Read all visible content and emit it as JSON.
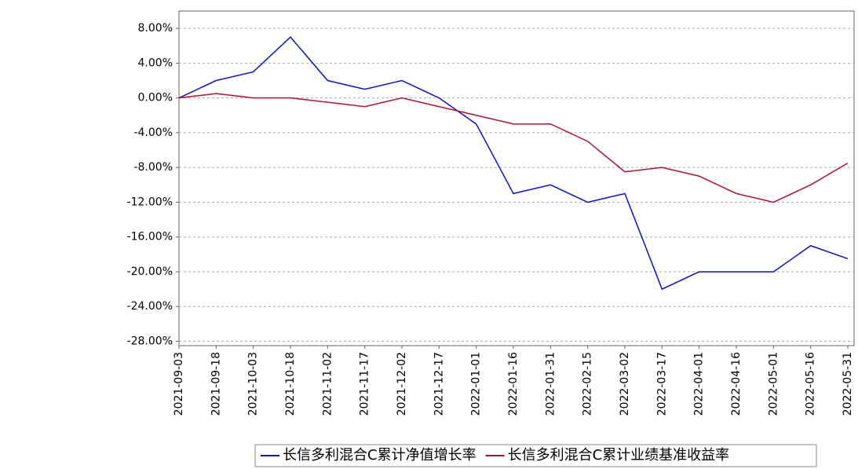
{
  "chart_data": {
    "type": "line",
    "x": [
      "2021-09-03",
      "2021-09-18",
      "2021-10-03",
      "2021-10-18",
      "2021-11-02",
      "2021-11-17",
      "2021-12-02",
      "2021-12-17",
      "2022-01-01",
      "2022-01-16",
      "2022-01-31",
      "2022-02-15",
      "2022-03-02",
      "2022-03-17",
      "2022-04-01",
      "2022-04-16",
      "2022-05-01",
      "2022-05-16",
      "2022-05-31"
    ],
    "series": [
      {
        "name": "长信多利混合C累计净值增长率",
        "color": "#1010c8",
        "values": [
          0,
          2,
          3,
          7,
          2,
          1,
          2,
          0,
          -3,
          -11,
          -10,
          -12,
          -11,
          -22,
          -20,
          -20,
          -20,
          -17,
          -18.5
        ]
      },
      {
        "name": "长信多利混合C累计业绩基准收益率",
        "color": "#b01030",
        "values": [
          0,
          0.5,
          0,
          0,
          -0.5,
          -1,
          0,
          -1,
          -2,
          -3,
          -3,
          -5,
          -8.5,
          -8,
          -9,
          -11,
          -12,
          -10,
          -7.5
        ]
      }
    ],
    "ylim": [
      -28.5,
      10
    ],
    "yticks": [
      {
        "value": 8,
        "label": "8.00%"
      },
      {
        "value": 4,
        "label": "4.00%"
      },
      {
        "value": 0,
        "label": "0.00%"
      },
      {
        "value": -4,
        "label": "-4.00%"
      },
      {
        "value": -8,
        "label": "-8.00%"
      },
      {
        "value": -12,
        "label": "-12.00%"
      },
      {
        "value": -16,
        "label": "-16.00%"
      },
      {
        "value": -20,
        "label": "-20.00%"
      },
      {
        "value": -24,
        "label": "-24.00%"
      },
      {
        "value": -28,
        "label": "-28.00%"
      }
    ],
    "grid": true
  }
}
